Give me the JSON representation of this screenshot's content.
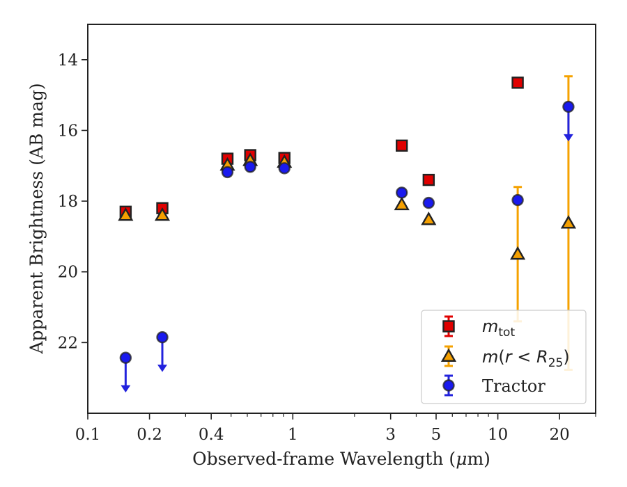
{
  "chart_data": {
    "type": "scatter",
    "xlabel_main": "Observed-frame Wavelength (",
    "xlabel_mu": "μ",
    "xlabel_end": "m)",
    "ylabel": "Apparent Brightness (AB mag)",
    "xscale": "log",
    "xlim": [
      0.1,
      30
    ],
    "ylim": [
      24,
      13
    ],
    "y_inverted": true,
    "x_ticks": [
      0.1,
      0.2,
      0.4,
      1,
      3,
      5,
      10,
      20
    ],
    "x_tick_labels": [
      "0.1",
      "0.2",
      "0.4",
      "1",
      "3",
      "5",
      "10",
      "20"
    ],
    "y_ticks": [
      14,
      16,
      18,
      20,
      22
    ],
    "y_tick_labels": [
      "14",
      "16",
      "18",
      "20",
      "22"
    ],
    "grid": false,
    "legend_position": "lower-right",
    "legend": {
      "mtot_m": "m",
      "mtot_sub": "tot",
      "mr_pre": "m",
      "mr_paren": "(",
      "mr_r": "r",
      "mr_lt": " < ",
      "mr_R": "R",
      "mr_sub": "25",
      "mr_close": ")",
      "tractor": "Tractor"
    },
    "series": [
      {
        "key": "mtot",
        "marker": "square",
        "color": "#e00000",
        "error_color": "#e00000",
        "points": [
          {
            "x": 0.153,
            "y": 18.3,
            "err": 0.0
          },
          {
            "x": 0.231,
            "y": 18.2,
            "err": 0.0
          },
          {
            "x": 0.48,
            "y": 16.8,
            "err": 0.0
          },
          {
            "x": 0.62,
            "y": 16.7,
            "err": 0.0
          },
          {
            "x": 0.91,
            "y": 16.78,
            "err": 0.0
          },
          {
            "x": 3.4,
            "y": 16.43,
            "err": 0.0
          },
          {
            "x": 4.6,
            "y": 17.4,
            "err": 0.0
          },
          {
            "x": 12.5,
            "y": 14.65,
            "err": 0.0
          }
        ]
      },
      {
        "key": "mr25",
        "marker": "triangle",
        "color": "#f5a000",
        "error_color": "#f5a200",
        "points": [
          {
            "x": 0.153,
            "y": 18.4,
            "err": 0.0
          },
          {
            "x": 0.231,
            "y": 18.4,
            "err": 0.0
          },
          {
            "x": 0.48,
            "y": 16.98,
            "err": 0.0
          },
          {
            "x": 0.62,
            "y": 16.85,
            "err": 0.0
          },
          {
            "x": 0.91,
            "y": 16.9,
            "err": 0.0
          },
          {
            "x": 3.4,
            "y": 18.1,
            "err": 0.0
          },
          {
            "x": 4.6,
            "y": 18.52,
            "err": 0.0
          },
          {
            "x": 12.5,
            "y": 19.5,
            "err": 1.9
          },
          {
            "x": 22.1,
            "y": 18.62,
            "err": 4.15
          }
        ]
      },
      {
        "key": "tractor",
        "marker": "circle",
        "color": "#1a1aee",
        "error_color": "#2222dd",
        "points": [
          {
            "x": 0.153,
            "y": 22.43,
            "upper_limit": true
          },
          {
            "x": 0.231,
            "y": 21.85,
            "upper_limit": true
          },
          {
            "x": 0.48,
            "y": 17.18,
            "err": 0.0
          },
          {
            "x": 0.62,
            "y": 17.03,
            "err": 0.0
          },
          {
            "x": 0.91,
            "y": 17.07,
            "err": 0.0
          },
          {
            "x": 3.4,
            "y": 17.76,
            "err": 0.0
          },
          {
            "x": 4.6,
            "y": 18.05,
            "err": 0.0
          },
          {
            "x": 12.5,
            "y": 17.97,
            "err": 0.0
          },
          {
            "x": 22.1,
            "y": 15.33,
            "upper_limit": true
          }
        ]
      }
    ]
  }
}
